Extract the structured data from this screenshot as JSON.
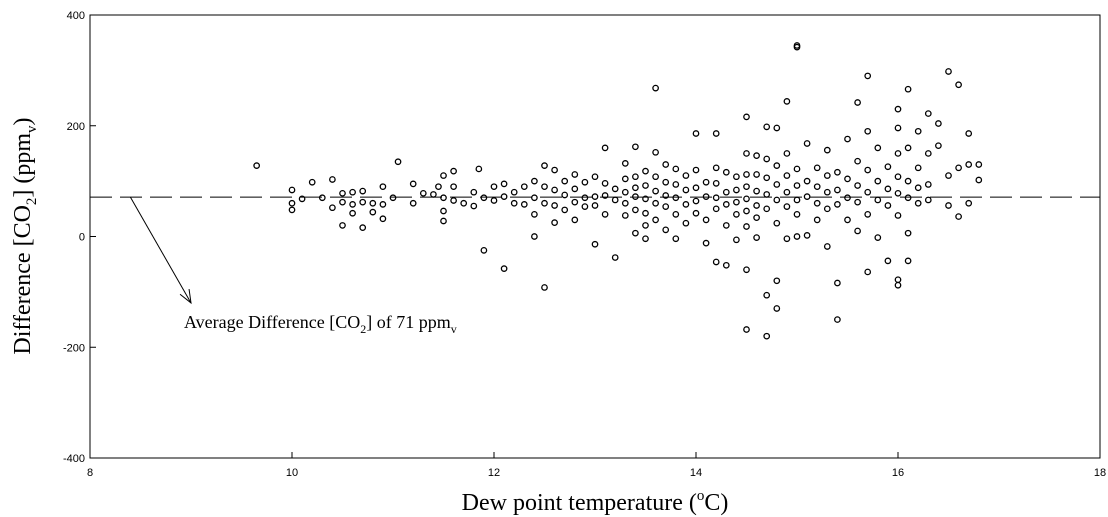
{
  "chart_data": {
    "type": "scatter",
    "title": "",
    "xlabel": {
      "main": "Dew point temperature (",
      "sup": "o",
      "tail": "C)"
    },
    "ylabel": {
      "main": "Difference [CO",
      "sub1": "2",
      "mid": "] (ppm",
      "sub2": "v",
      "tail": ")"
    },
    "xlim": [
      8,
      18
    ],
    "ylim": [
      -400,
      400
    ],
    "x_ticks": [
      "8",
      "10",
      "12",
      "14",
      "16",
      "18"
    ],
    "y_ticks": [
      "400",
      "200",
      "0",
      "-200",
      "-400"
    ],
    "grid": false,
    "reference_line": {
      "y": 71,
      "style": "dashed"
    },
    "annotation": {
      "main": "Average Difference [CO",
      "sub1": "2",
      "mid": "] of 71 ppm",
      "sub2": "v",
      "arrow_from": [
        8.4,
        71
      ],
      "arrow_to": [
        9.0,
        -120
      ]
    },
    "marker": "open-circle",
    "points": [
      [
        9.65,
        128
      ],
      [
        10.0,
        84
      ],
      [
        10.0,
        60
      ],
      [
        10.0,
        48
      ],
      [
        10.1,
        68
      ],
      [
        10.2,
        98
      ],
      [
        10.3,
        70
      ],
      [
        10.4,
        103
      ],
      [
        10.4,
        52
      ],
      [
        10.5,
        78
      ],
      [
        10.5,
        62
      ],
      [
        10.5,
        20
      ],
      [
        10.6,
        80
      ],
      [
        10.6,
        58
      ],
      [
        10.6,
        42
      ],
      [
        10.7,
        82
      ],
      [
        10.7,
        62
      ],
      [
        10.7,
        16
      ],
      [
        10.8,
        60
      ],
      [
        10.8,
        44
      ],
      [
        10.9,
        90
      ],
      [
        10.9,
        58
      ],
      [
        10.9,
        32
      ],
      [
        11.0,
        70
      ],
      [
        11.05,
        135
      ],
      [
        11.2,
        95
      ],
      [
        11.2,
        60
      ],
      [
        11.3,
        78
      ],
      [
        11.4,
        76
      ],
      [
        11.45,
        90
      ],
      [
        11.5,
        110
      ],
      [
        11.5,
        70
      ],
      [
        11.5,
        46
      ],
      [
        11.5,
        28
      ],
      [
        11.6,
        118
      ],
      [
        11.6,
        90
      ],
      [
        11.6,
        65
      ],
      [
        11.7,
        60
      ],
      [
        11.8,
        80
      ],
      [
        11.8,
        55
      ],
      [
        11.85,
        122
      ],
      [
        11.9,
        70
      ],
      [
        11.9,
        -25
      ],
      [
        12.0,
        90
      ],
      [
        12.0,
        65
      ],
      [
        12.1,
        95
      ],
      [
        12.1,
        72
      ],
      [
        12.1,
        -58
      ],
      [
        12.2,
        80
      ],
      [
        12.2,
        60
      ],
      [
        12.3,
        90
      ],
      [
        12.3,
        58
      ],
      [
        12.4,
        100
      ],
      [
        12.4,
        70
      ],
      [
        12.4,
        40
      ],
      [
        12.4,
        0
      ],
      [
        12.5,
        128
      ],
      [
        12.5,
        90
      ],
      [
        12.5,
        60
      ],
      [
        12.5,
        -92
      ],
      [
        12.6,
        120
      ],
      [
        12.6,
        84
      ],
      [
        12.6,
        56
      ],
      [
        12.6,
        25
      ],
      [
        12.7,
        100
      ],
      [
        12.7,
        75
      ],
      [
        12.7,
        48
      ],
      [
        12.8,
        112
      ],
      [
        12.8,
        86
      ],
      [
        12.8,
        62
      ],
      [
        12.8,
        30
      ],
      [
        12.9,
        98
      ],
      [
        12.9,
        70
      ],
      [
        12.9,
        54
      ],
      [
        13.0,
        108
      ],
      [
        13.0,
        72
      ],
      [
        13.0,
        56
      ],
      [
        13.0,
        -14
      ],
      [
        13.1,
        160
      ],
      [
        13.1,
        96
      ],
      [
        13.1,
        74
      ],
      [
        13.1,
        40
      ],
      [
        13.2,
        86
      ],
      [
        13.2,
        66
      ],
      [
        13.2,
        -38
      ],
      [
        13.3,
        132
      ],
      [
        13.3,
        104
      ],
      [
        13.3,
        80
      ],
      [
        13.3,
        60
      ],
      [
        13.3,
        38
      ],
      [
        13.4,
        162
      ],
      [
        13.4,
        108
      ],
      [
        13.4,
        88
      ],
      [
        13.4,
        72
      ],
      [
        13.4,
        48
      ],
      [
        13.4,
        6
      ],
      [
        13.5,
        118
      ],
      [
        13.5,
        92
      ],
      [
        13.5,
        68
      ],
      [
        13.5,
        42
      ],
      [
        13.5,
        20
      ],
      [
        13.5,
        -4
      ],
      [
        13.6,
        268
      ],
      [
        13.6,
        152
      ],
      [
        13.6,
        108
      ],
      [
        13.6,
        82
      ],
      [
        13.6,
        60
      ],
      [
        13.6,
        30
      ],
      [
        13.7,
        130
      ],
      [
        13.7,
        98
      ],
      [
        13.7,
        74
      ],
      [
        13.7,
        54
      ],
      [
        13.7,
        12
      ],
      [
        13.8,
        122
      ],
      [
        13.8,
        94
      ],
      [
        13.8,
        70
      ],
      [
        13.8,
        40
      ],
      [
        13.8,
        -4
      ],
      [
        13.9,
        110
      ],
      [
        13.9,
        84
      ],
      [
        13.9,
        58
      ],
      [
        13.9,
        24
      ],
      [
        14.0,
        186
      ],
      [
        14.0,
        120
      ],
      [
        14.0,
        88
      ],
      [
        14.0,
        64
      ],
      [
        14.0,
        42
      ],
      [
        14.1,
        98
      ],
      [
        14.1,
        72
      ],
      [
        14.1,
        30
      ],
      [
        14.1,
        -12
      ],
      [
        14.2,
        186
      ],
      [
        14.2,
        124
      ],
      [
        14.2,
        96
      ],
      [
        14.2,
        70
      ],
      [
        14.2,
        50
      ],
      [
        14.2,
        -46
      ],
      [
        14.3,
        116
      ],
      [
        14.3,
        80
      ],
      [
        14.3,
        58
      ],
      [
        14.3,
        20
      ],
      [
        14.3,
        -52
      ],
      [
        14.4,
        108
      ],
      [
        14.4,
        84
      ],
      [
        14.4,
        62
      ],
      [
        14.4,
        40
      ],
      [
        14.4,
        -6
      ],
      [
        14.5,
        216
      ],
      [
        14.5,
        150
      ],
      [
        14.5,
        112
      ],
      [
        14.5,
        90
      ],
      [
        14.5,
        68
      ],
      [
        14.5,
        46
      ],
      [
        14.5,
        18
      ],
      [
        14.5,
        -60
      ],
      [
        14.5,
        -168
      ],
      [
        14.6,
        146
      ],
      [
        14.6,
        112
      ],
      [
        14.6,
        82
      ],
      [
        14.6,
        56
      ],
      [
        14.6,
        34
      ],
      [
        14.6,
        -2
      ],
      [
        14.7,
        198
      ],
      [
        14.7,
        140
      ],
      [
        14.7,
        106
      ],
      [
        14.7,
        76
      ],
      [
        14.7,
        50
      ],
      [
        14.7,
        -106
      ],
      [
        14.7,
        -180
      ],
      [
        14.8,
        196
      ],
      [
        14.8,
        128
      ],
      [
        14.8,
        94
      ],
      [
        14.8,
        66
      ],
      [
        14.8,
        24
      ],
      [
        14.8,
        -80
      ],
      [
        14.8,
        -130
      ],
      [
        14.9,
        244
      ],
      [
        14.9,
        150
      ],
      [
        14.9,
        110
      ],
      [
        14.9,
        80
      ],
      [
        14.9,
        54
      ],
      [
        14.9,
        -4
      ],
      [
        15.0,
        345
      ],
      [
        15.0,
        342
      ],
      [
        15.0,
        122
      ],
      [
        15.0,
        92
      ],
      [
        15.0,
        66
      ],
      [
        15.0,
        40
      ],
      [
        15.0,
        0
      ],
      [
        15.1,
        168
      ],
      [
        15.1,
        100
      ],
      [
        15.1,
        72
      ],
      [
        15.1,
        2
      ],
      [
        15.2,
        124
      ],
      [
        15.2,
        90
      ],
      [
        15.2,
        60
      ],
      [
        15.2,
        30
      ],
      [
        15.3,
        156
      ],
      [
        15.3,
        110
      ],
      [
        15.3,
        80
      ],
      [
        15.3,
        50
      ],
      [
        15.3,
        -18
      ],
      [
        15.4,
        116
      ],
      [
        15.4,
        84
      ],
      [
        15.4,
        58
      ],
      [
        15.4,
        -84
      ],
      [
        15.4,
        -150
      ],
      [
        15.5,
        176
      ],
      [
        15.5,
        104
      ],
      [
        15.5,
        70
      ],
      [
        15.5,
        30
      ],
      [
        15.6,
        242
      ],
      [
        15.6,
        136
      ],
      [
        15.6,
        92
      ],
      [
        15.6,
        62
      ],
      [
        15.6,
        10
      ],
      [
        15.7,
        290
      ],
      [
        15.7,
        190
      ],
      [
        15.7,
        120
      ],
      [
        15.7,
        80
      ],
      [
        15.7,
        40
      ],
      [
        15.7,
        -64
      ],
      [
        15.8,
        160
      ],
      [
        15.8,
        100
      ],
      [
        15.8,
        66
      ],
      [
        15.8,
        -2
      ],
      [
        15.9,
        126
      ],
      [
        15.9,
        86
      ],
      [
        15.9,
        56
      ],
      [
        15.9,
        -44
      ],
      [
        16.0,
        230
      ],
      [
        16.0,
        196
      ],
      [
        16.0,
        150
      ],
      [
        16.0,
        108
      ],
      [
        16.0,
        78
      ],
      [
        16.0,
        38
      ],
      [
        16.0,
        -78
      ],
      [
        16.0,
        -88
      ],
      [
        16.1,
        266
      ],
      [
        16.1,
        160
      ],
      [
        16.1,
        100
      ],
      [
        16.1,
        70
      ],
      [
        16.1,
        6
      ],
      [
        16.1,
        -44
      ],
      [
        16.2,
        190
      ],
      [
        16.2,
        124
      ],
      [
        16.2,
        88
      ],
      [
        16.2,
        60
      ],
      [
        16.3,
        222
      ],
      [
        16.3,
        150
      ],
      [
        16.3,
        94
      ],
      [
        16.3,
        66
      ],
      [
        16.4,
        204
      ],
      [
        16.4,
        164
      ],
      [
        16.5,
        298
      ],
      [
        16.5,
        110
      ],
      [
        16.5,
        56
      ],
      [
        16.6,
        274
      ],
      [
        16.6,
        124
      ],
      [
        16.6,
        36
      ],
      [
        16.7,
        186
      ],
      [
        16.7,
        130
      ],
      [
        16.7,
        60
      ],
      [
        16.8,
        130
      ],
      [
        16.8,
        102
      ]
    ]
  }
}
